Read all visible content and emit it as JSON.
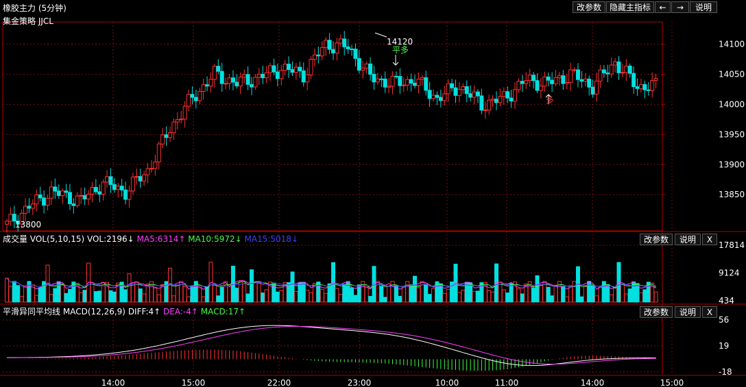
{
  "window": {
    "title": "橡胶主力 (5分钟)",
    "strategy": "集金策略 JJCL",
    "buttons": {
      "params": "改参数",
      "hide_main": "隐藏主指标",
      "prev": "←",
      "next": "→",
      "help": "说明"
    }
  },
  "price_panel": {
    "y_axis_ticks": [
      "14100",
      "14050",
      "14000",
      "13950",
      "13900",
      "13850"
    ],
    "annotations": {
      "high_label": "14120",
      "low_label": "13800",
      "signal_short_close": "平多",
      "signal_long": "多"
    }
  },
  "volume_panel": {
    "name": "成交量",
    "indicator": "VOL(5,10,15)",
    "vol": "VOL:2196↓",
    "ma5": "MA5:6314↑",
    "ma10": "MA10:5972↓",
    "ma15": "MA15:5018↓",
    "y_axis_ticks": [
      "17814",
      "9124",
      "434"
    ],
    "buttons": {
      "params": "改参数",
      "help": "说明",
      "close": "X"
    }
  },
  "macd_panel": {
    "name": "平滑异同平均线",
    "indicator": "MACD(12,26,9)",
    "diff": "DIFF:4↑",
    "dea": "DEA:-4↑",
    "macd": "MACD:17↑",
    "y_axis_ticks": [
      "56",
      "19",
      "-18"
    ],
    "buttons": {
      "params": "改参数",
      "help": "说明",
      "close": "X"
    }
  },
  "time_axis": [
    "14:00",
    "15:00",
    "22:00",
    "23:00",
    "10:00",
    "11:00",
    "14:00",
    "15:00"
  ],
  "colors": {
    "up": "#ff3232",
    "down": "#00e0e0",
    "grid": "#7a1010",
    "ma5": "#ff40ff",
    "ma10": "#40ff40",
    "ma15": "#4040ff",
    "white_line": "#ffffff",
    "macd_pos": "#ff3232",
    "macd_neg": "#40ff40"
  }
}
